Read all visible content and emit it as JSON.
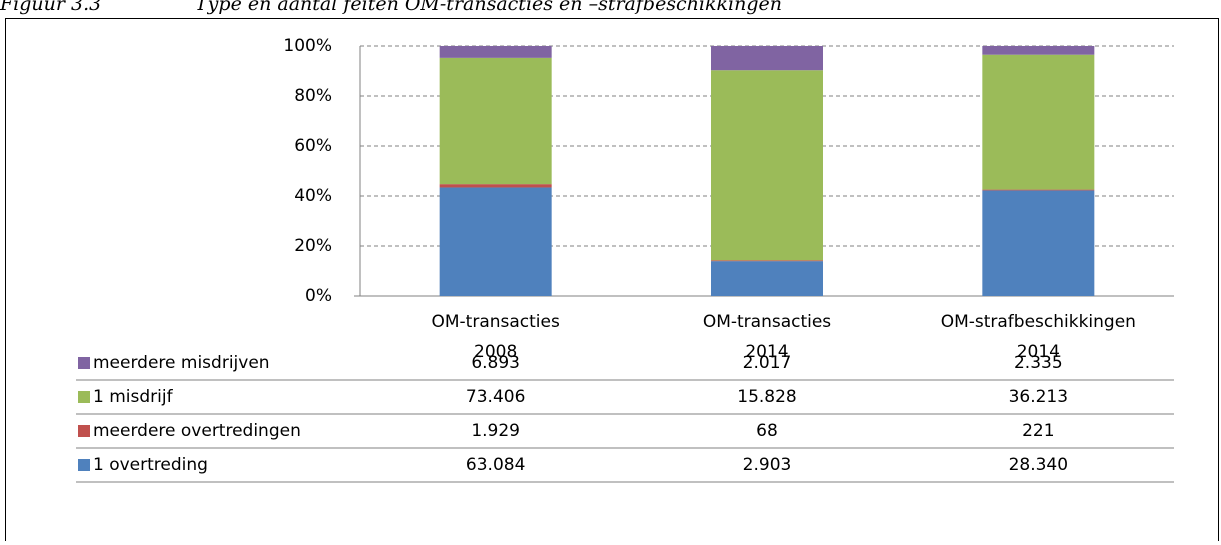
{
  "chart_data": {
    "type": "bar",
    "stacking": "percent",
    "title": "Figuur 3.3",
    "subtitle": "Type en aantal feiten OM-transacties en –strafbeschikkingen",
    "categories": [
      [
        "OM-transacties",
        "2008"
      ],
      [
        "OM-transacties",
        "2014"
      ],
      [
        "OM-strafbeschikkingen",
        "2014"
      ]
    ],
    "series": [
      {
        "name": "1 overtreding",
        "color": "#4f81bd",
        "values": [
          63084,
          2903,
          28340
        ],
        "value_labels": [
          "63.084",
          "2.903",
          "28.340"
        ]
      },
      {
        "name": "meerdere overtredingen",
        "color": "#c0504d",
        "values": [
          1929,
          68,
          221
        ],
        "value_labels": [
          "1.929",
          "68",
          "221"
        ]
      },
      {
        "name": "1 misdrijf",
        "color": "#9bbb59",
        "values": [
          73406,
          15828,
          36213
        ],
        "value_labels": [
          "73.406",
          "15.828",
          "36.213"
        ]
      },
      {
        "name": "meerdere misdrijven",
        "color": "#8064a2",
        "values": [
          6893,
          2017,
          2335
        ],
        "value_labels": [
          "6.893",
          "2.017",
          "2.335"
        ]
      }
    ],
    "ylim": [
      0,
      100
    ],
    "yticks": [
      {
        "value": 0,
        "label": "0%"
      },
      {
        "value": 20,
        "label": "20%"
      },
      {
        "value": 40,
        "label": "40%"
      },
      {
        "value": 60,
        "label": "60%"
      },
      {
        "value": 80,
        "label": "80%"
      },
      {
        "value": 100,
        "label": "100%"
      }
    ],
    "grid": true
  }
}
